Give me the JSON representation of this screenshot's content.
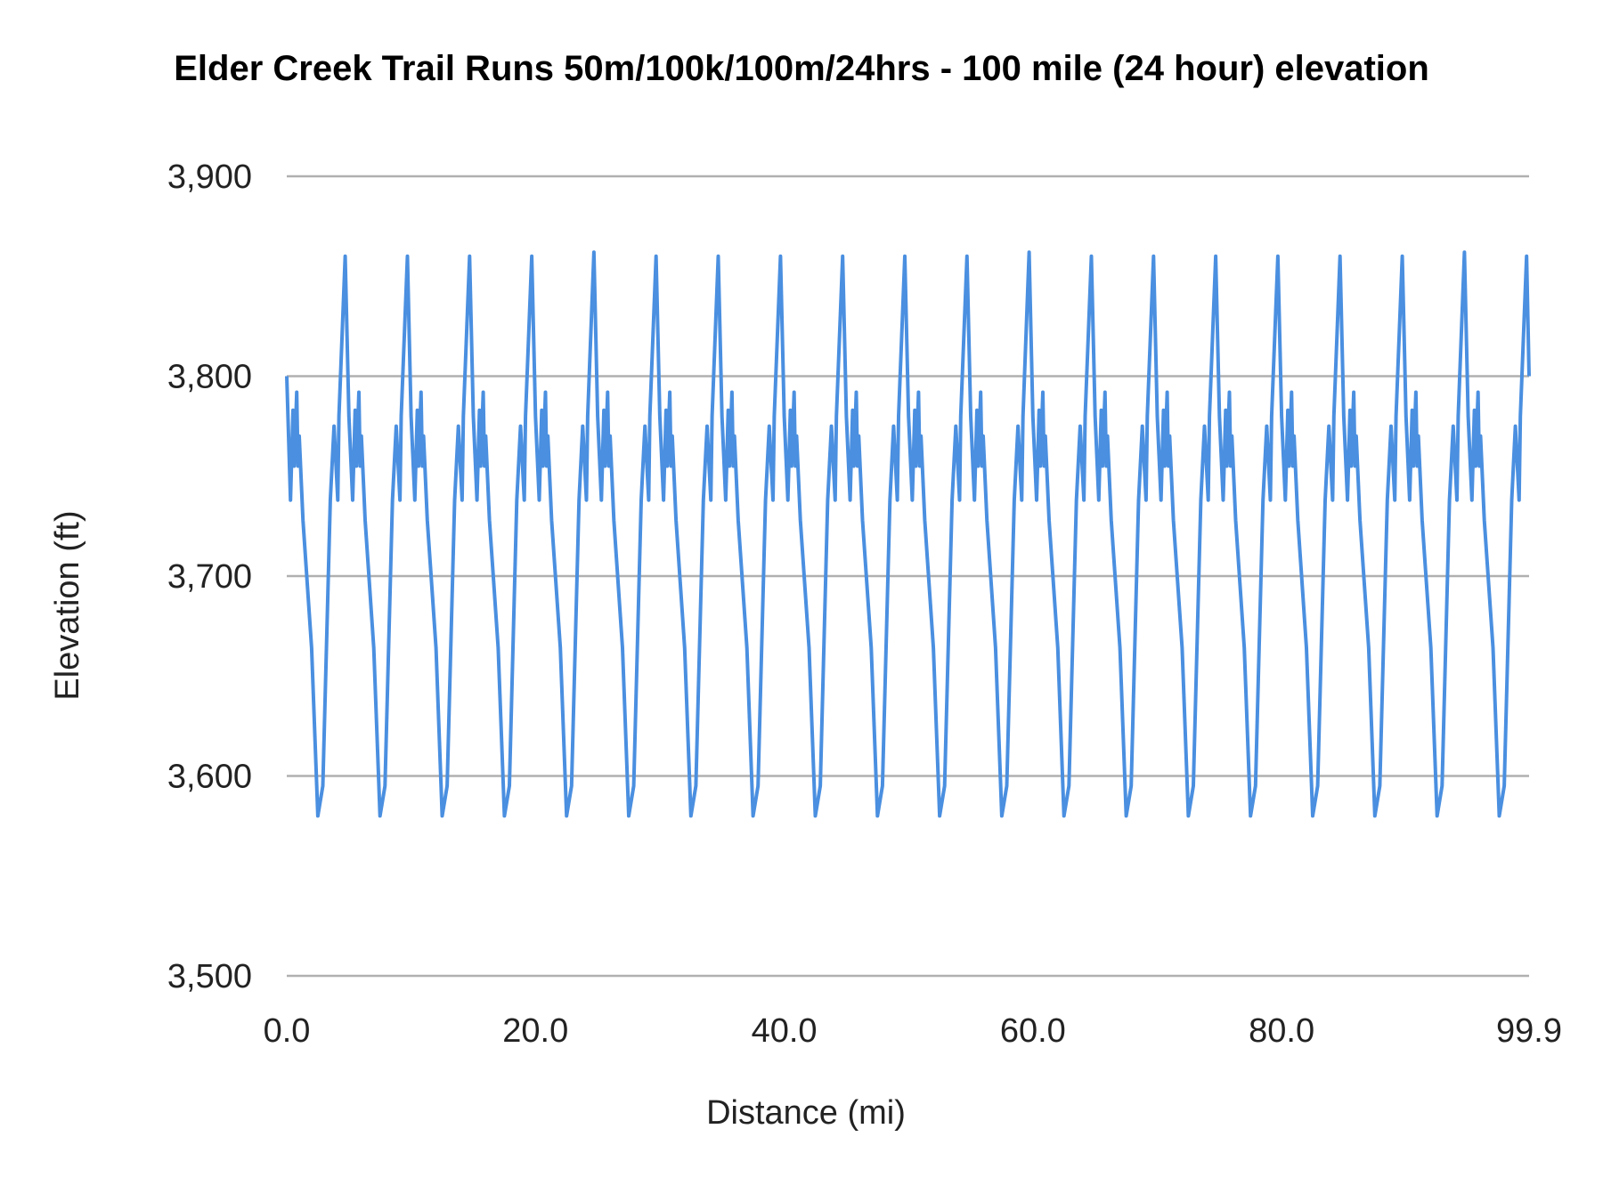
{
  "chart_data": {
    "type": "line",
    "title": "Elder Creek Trail Runs 50m/100k/100m/24hrs - 100 mile (24 hour) elevation",
    "xlabel": "Distance (mi)",
    "ylabel": "Elevation (ft)",
    "xlim": [
      0,
      99.9
    ],
    "ylim": [
      3500,
      3900
    ],
    "x_ticks": [
      "0.0",
      "20.0",
      "40.0",
      "60.0",
      "80.0",
      "99.9"
    ],
    "x_tick_values": [
      0,
      20,
      40,
      60,
      80,
      99.9
    ],
    "y_ticks": [
      "3,500",
      "3,600",
      "3,700",
      "3,800",
      "3,900"
    ],
    "y_tick_values": [
      3500,
      3600,
      3700,
      3800,
      3900
    ],
    "grid": "horizontal",
    "legend": "none",
    "series_color": "#4a8fe0",
    "series": [
      {
        "x": [
          0,
          0.3,
          0.5,
          0.6,
          0.8,
          0.9,
          1,
          1.3,
          2,
          2.5,
          2.9,
          3.5,
          3.8,
          4.1,
          4.2,
          4.7,
          5,
          5.3,
          5.5,
          5.6,
          5.8,
          5.9,
          6,
          6.3,
          7,
          7.5,
          7.9,
          8.5,
          8.8,
          9.1,
          9.2,
          9.7,
          10,
          10.3,
          10.5,
          10.6,
          10.8,
          10.9,
          11,
          11.3,
          12,
          12.5,
          12.9,
          13.5,
          13.8,
          14.1,
          14.2,
          14.7,
          15,
          15.3,
          15.5,
          15.6,
          15.8,
          15.9,
          16,
          16.3,
          17,
          17.5,
          17.9,
          18.5,
          18.8,
          19.1,
          19.2,
          19.7,
          20,
          20.3,
          20.5,
          20.6,
          20.8,
          20.9,
          21,
          21.3,
          22,
          22.5,
          22.9,
          23.5,
          23.8,
          24.1,
          24.2,
          24.7,
          25,
          25.3,
          25.5,
          25.6,
          25.8,
          25.9,
          26,
          26.3,
          27,
          27.5,
          27.9,
          28.5,
          28.8,
          29.1,
          29.2,
          29.7,
          30,
          30.3,
          30.5,
          30.6,
          30.8,
          30.9,
          31,
          31.3,
          32,
          32.5,
          32.9,
          33.5,
          33.8,
          34.1,
          34.2,
          34.7,
          35,
          35.3,
          35.5,
          35.6,
          35.8,
          35.9,
          36,
          36.3,
          37,
          37.5,
          37.9,
          38.5,
          38.8,
          39.1,
          39.2,
          39.7,
          40,
          40.3,
          40.5,
          40.6,
          40.8,
          40.9,
          41,
          41.3,
          42,
          42.5,
          42.9,
          43.5,
          43.8,
          44.1,
          44.2,
          44.7,
          45,
          45.3,
          45.5,
          45.6,
          45.8,
          45.9,
          46,
          46.3,
          47,
          47.5,
          47.9,
          48.5,
          48.8,
          49.1,
          49.2,
          49.7,
          50,
          50.3,
          50.5,
          50.6,
          50.8,
          50.9,
          51,
          51.3,
          52,
          52.5,
          52.9,
          53.5,
          53.8,
          54.1,
          54.2,
          54.7,
          55,
          55.3,
          55.5,
          55.6,
          55.8,
          55.9,
          56,
          56.3,
          57,
          57.5,
          57.9,
          58.5,
          58.8,
          59.1,
          59.2,
          59.7,
          60,
          60.3,
          60.5,
          60.6,
          60.8,
          60.9,
          61,
          61.3,
          62,
          62.5,
          62.9,
          63.5,
          63.8,
          64.1,
          64.2,
          64.7,
          65,
          65.3,
          65.5,
          65.6,
          65.8,
          65.9,
          66,
          66.3,
          67,
          67.5,
          67.9,
          68.5,
          68.8,
          69.1,
          69.2,
          69.7,
          70,
          70.3,
          70.5,
          70.6,
          70.8,
          70.9,
          71,
          71.3,
          72,
          72.5,
          72.9,
          73.5,
          73.8,
          74.1,
          74.2,
          74.7,
          75,
          75.3,
          75.5,
          75.6,
          75.8,
          75.9,
          76,
          76.3,
          77,
          77.5,
          77.9,
          78.5,
          78.8,
          79.1,
          79.2,
          79.7,
          80,
          80.3,
          80.5,
          80.6,
          80.8,
          80.9,
          81,
          81.3,
          82,
          82.5,
          82.9,
          83.5,
          83.8,
          84.1,
          84.2,
          84.7,
          85,
          85.3,
          85.5,
          85.6,
          85.8,
          85.9,
          86,
          86.3,
          87,
          87.5,
          87.9,
          88.5,
          88.8,
          89.1,
          89.2,
          89.7,
          90,
          90.3,
          90.5,
          90.6,
          90.8,
          90.9,
          91,
          91.3,
          92,
          92.5,
          92.9,
          93.5,
          93.8,
          94.1,
          94.2,
          94.7,
          95,
          95.3,
          95.5,
          95.6,
          95.8,
          95.9,
          96,
          96.3,
          97,
          97.5,
          97.9,
          98.5,
          98.8,
          99.1,
          99.2,
          99.7,
          99.9
        ],
        "y": [
          3800,
          3738,
          3783,
          3755,
          3792,
          3755,
          3770,
          3728,
          3664,
          3580,
          3595,
          3738,
          3775,
          3738,
          3780,
          3860,
          3780,
          3738,
          3783,
          3755,
          3792,
          3755,
          3770,
          3728,
          3664,
          3580,
          3595,
          3738,
          3775,
          3738,
          3780,
          3860,
          3780,
          3738,
          3783,
          3755,
          3792,
          3755,
          3770,
          3728,
          3664,
          3580,
          3595,
          3738,
          3775,
          3738,
          3780,
          3860,
          3780,
          3738,
          3783,
          3755,
          3792,
          3755,
          3770,
          3728,
          3664,
          3580,
          3595,
          3738,
          3775,
          3738,
          3780,
          3860,
          3780,
          3738,
          3783,
          3755,
          3792,
          3755,
          3770,
          3728,
          3664,
          3580,
          3595,
          3738,
          3775,
          3738,
          3780,
          3862,
          3780,
          3738,
          3783,
          3755,
          3792,
          3755,
          3770,
          3728,
          3664,
          3580,
          3595,
          3738,
          3775,
          3738,
          3780,
          3860,
          3780,
          3738,
          3783,
          3755,
          3792,
          3755,
          3770,
          3728,
          3664,
          3580,
          3595,
          3738,
          3775,
          3738,
          3780,
          3860,
          3780,
          3738,
          3783,
          3755,
          3792,
          3755,
          3770,
          3728,
          3664,
          3580,
          3595,
          3738,
          3775,
          3738,
          3780,
          3860,
          3780,
          3738,
          3783,
          3755,
          3792,
          3755,
          3770,
          3728,
          3664,
          3580,
          3595,
          3738,
          3775,
          3738,
          3780,
          3860,
          3780,
          3738,
          3783,
          3755,
          3792,
          3755,
          3770,
          3728,
          3664,
          3580,
          3595,
          3738,
          3775,
          3738,
          3780,
          3860,
          3780,
          3738,
          3783,
          3755,
          3792,
          3755,
          3770,
          3728,
          3664,
          3580,
          3595,
          3738,
          3775,
          3738,
          3780,
          3860,
          3780,
          3738,
          3783,
          3755,
          3792,
          3755,
          3770,
          3728,
          3664,
          3580,
          3595,
          3738,
          3775,
          3738,
          3780,
          3862,
          3780,
          3738,
          3783,
          3755,
          3792,
          3755,
          3770,
          3728,
          3664,
          3580,
          3595,
          3738,
          3775,
          3738,
          3780,
          3860,
          3780,
          3738,
          3783,
          3755,
          3792,
          3755,
          3770,
          3728,
          3664,
          3580,
          3595,
          3738,
          3775,
          3738,
          3780,
          3860,
          3780,
          3738,
          3783,
          3755,
          3792,
          3755,
          3770,
          3728,
          3664,
          3580,
          3595,
          3738,
          3775,
          3738,
          3780,
          3860,
          3780,
          3738,
          3783,
          3755,
          3792,
          3755,
          3770,
          3728,
          3664,
          3580,
          3595,
          3738,
          3775,
          3738,
          3780,
          3860,
          3780,
          3738,
          3783,
          3755,
          3792,
          3755,
          3770,
          3728,
          3664,
          3580,
          3595,
          3738,
          3775,
          3738,
          3780,
          3860,
          3780,
          3738,
          3783,
          3755,
          3792,
          3755,
          3770,
          3728,
          3664,
          3580,
          3595,
          3738,
          3775,
          3738,
          3780,
          3860,
          3780,
          3738,
          3783,
          3755,
          3792,
          3755,
          3770,
          3728,
          3664,
          3580,
          3595,
          3738,
          3775,
          3738,
          3780,
          3862,
          3780,
          3738,
          3783,
          3755,
          3792,
          3755,
          3770,
          3728,
          3664,
          3580,
          3595,
          3738,
          3775,
          3738,
          3780,
          3860,
          3800
        ]
      }
    ]
  }
}
